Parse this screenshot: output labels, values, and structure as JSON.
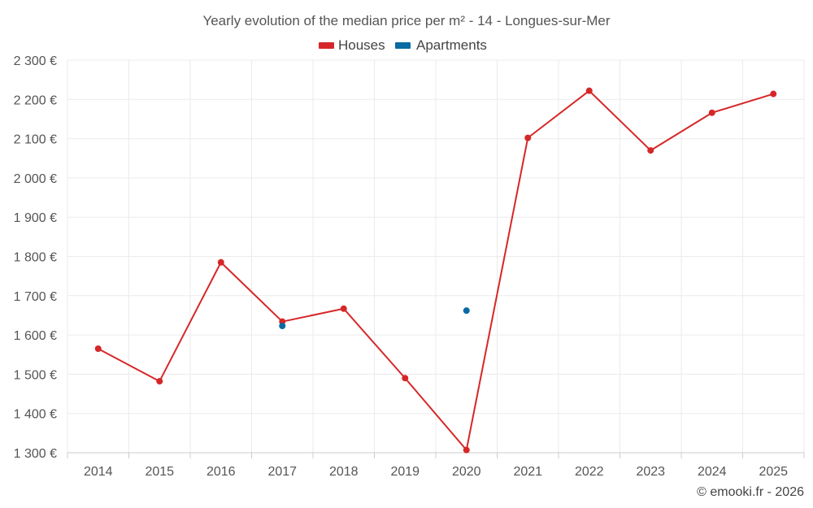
{
  "chart_data": {
    "type": "line",
    "title": "Yearly evolution of the median price per m² - 14 - Longues-sur-Mer",
    "xlabel": "",
    "ylabel": "",
    "categories": [
      "2014",
      "2015",
      "2016",
      "2017",
      "2018",
      "2019",
      "2020",
      "2021",
      "2022",
      "2023",
      "2024",
      "2025"
    ],
    "ylim": [
      1300,
      2300
    ],
    "yticks": [
      1300,
      1400,
      1500,
      1600,
      1700,
      1800,
      1900,
      2000,
      2100,
      2200,
      2300
    ],
    "ytick_labels": [
      "1 300 €",
      "1 400 €",
      "1 500 €",
      "1 600 €",
      "1 700 €",
      "1 800 €",
      "1 900 €",
      "2 000 €",
      "2 100 €",
      "2 200 €",
      "2 300 €"
    ],
    "grid": true,
    "legend_position": "top-center",
    "series": [
      {
        "name": "Houses",
        "color": "#d62728",
        "values": [
          1565,
          1482,
          1785,
          1634,
          1667,
          1490,
          1307,
          2102,
          2222,
          2070,
          2166,
          2214
        ]
      },
      {
        "name": "Apartments",
        "color": "#0a6aa1",
        "values": [
          null,
          null,
          null,
          1623,
          null,
          null,
          1662,
          null,
          null,
          null,
          null,
          null
        ]
      }
    ]
  },
  "credit": "© emooki.fr - 2026"
}
